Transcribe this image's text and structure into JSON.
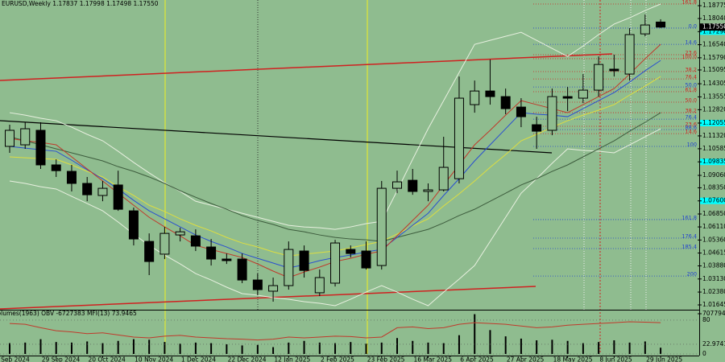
{
  "chart_data": {
    "type": "candlestick",
    "title": "EURUSD,Weekly  1.17837 1.17998 1.17498 1.17550",
    "categories": [
      "9 Sep 2024",
      null,
      null,
      "29 Sep 2024",
      null,
      null,
      "20 Oct 2024",
      null,
      null,
      "10 Nov 2024",
      null,
      null,
      "1 Dec 2024",
      null,
      null,
      "22 Dec 2024",
      null,
      null,
      "12 Jan 2025",
      null,
      null,
      "2 Feb 2025",
      null,
      null,
      "23 Feb 2025",
      null,
      null,
      "16 Mar 2025",
      null,
      null,
      "6 Apr 2025",
      null,
      null,
      "27 Apr 2025",
      null,
      null,
      "18 May 2025",
      null,
      null,
      "8 Jun 2025",
      null,
      null,
      "29 Jun 2025"
    ],
    "open": [
      1.1072,
      1.1081,
      1.1164,
      1.0966,
      1.0929,
      1.086,
      1.0791,
      1.0851,
      1.0703,
      1.0528,
      1.0455,
      1.0565,
      1.056,
      1.0496,
      1.0427,
      1.0427,
      1.0307,
      1.0243,
      1.0275,
      1.0473,
      1.0234,
      1.0289,
      1.0482,
      1.0473,
      1.039,
      1.0832,
      1.0878,
      1.0814,
      1.0823,
      1.0887,
      1.1311,
      1.1389,
      1.1357,
      1.1297,
      1.1196,
      1.1164,
      1.1357,
      1.1348,
      1.1394,
      1.1514,
      1.1486,
      1.1716,
      1.17837
    ],
    "high": [
      1.1196,
      1.121,
      1.121,
      1.0998,
      1.0966,
      1.0897,
      1.0874,
      1.0933,
      1.0722,
      1.0574,
      1.0611,
      1.0606,
      1.0597,
      1.0542,
      1.0459,
      1.0459,
      1.0344,
      1.0321,
      1.0528,
      1.0505,
      1.0367,
      1.0537,
      1.0505,
      1.0528,
      1.0874,
      1.0933,
      1.0943,
      1.086,
      1.1127,
      1.1472,
      1.1449,
      1.1569,
      1.1403,
      1.1348,
      1.1242,
      1.1403,
      1.1412,
      1.1486,
      1.1587,
      1.1597,
      1.1749,
      1.1827,
      1.17998
    ],
    "low": [
      1.1035,
      1.1058,
      1.0943,
      1.0897,
      1.0814,
      1.0758,
      1.0758,
      1.0703,
      1.0505,
      1.0335,
      1.0427,
      1.0528,
      1.0473,
      1.039,
      1.0399,
      1.0289,
      1.022,
      1.0183,
      1.0252,
      1.0321,
      1.0215,
      1.027,
      1.0436,
      1.0367,
      1.0367,
      1.0804,
      1.0795,
      1.0758,
      1.0814,
      1.086,
      1.1265,
      1.1311,
      1.1256,
      1.1182,
      1.1058,
      1.1136,
      1.1274,
      1.132,
      1.1357,
      1.1472,
      1.1449,
      1.1702,
      1.17498
    ],
    "close": [
      1.1164,
      1.1173,
      1.0966,
      1.0933,
      1.086,
      1.0795,
      1.0832,
      1.0712,
      1.0542,
      1.0413,
      1.0574,
      1.0583,
      1.0501,
      1.0427,
      1.0418,
      1.0307,
      1.0252,
      1.0275,
      1.0482,
      1.0362,
      1.0321,
      1.0519,
      1.0459,
      1.0376,
      1.0832,
      1.0869,
      1.0814,
      1.0823,
      1.0952,
      1.1348,
      1.1389,
      1.1357,
      1.1288,
      1.1242,
      1.1159,
      1.1357,
      1.1348,
      1.1394,
      1.1541,
      1.1505,
      1.1712,
      1.1767,
      1.1755
    ],
    "up_color": "#8fbc8f",
    "down_color": "#000000",
    "background": "#8fbc8f",
    "ylim": [
      1.0137,
      1.191
    ],
    "yticks": [
      1.18775,
      {
        "value": 1.1804,
        "label": "1.18040"
      },
      {
        "value": 1.1729,
        "label": "1.17290"
      },
      {
        "value": 1.1654,
        "label": "1.16540"
      },
      {
        "value": 1.1579,
        "label": "1.15790"
      },
      1.15095,
      1.14305,
      1.13555,
      {
        "value": 1.1282,
        "label": "1.12820"
      },
      1.12055,
      {
        "value": 1.1132,
        "label": "1.11320"
      },
      1.10585,
      1.09835,
      {
        "value": 1.0906,
        "label": "1.09060"
      },
      {
        "value": 1.0835,
        "label": "1.08350"
      },
      {
        "value": 1.076,
        "label": "1.07600"
      },
      {
        "value": 1.0685,
        "label": "1.06850"
      },
      {
        "value": 1.0611,
        "label": "1.06110"
      },
      {
        "value": 1.0536,
        "label": "1.05360"
      },
      1.04615,
      {
        "value": 1.0388,
        "label": "1.03880"
      },
      {
        "value": 1.0313,
        "label": "1.03130"
      },
      {
        "value": 1.0238,
        "label": "1.02380"
      },
      1.01645
    ],
    "overlays": [
      {
        "color": "#e8f0e0",
        "values": [
          1.1265,
          1.1251,
          1.1233,
          1.1219,
          1.1182,
          1.1141,
          1.1104,
          1.1044,
          1.098,
          1.092,
          1.0864,
          1.0814,
          1.0758,
          1.0735,
          1.0712,
          1.0689,
          1.0666,
          1.0643,
          1.062,
          1.0611,
          1.0606,
          1.0597,
          1.0611,
          1.063,
          1.0643,
          1.0818,
          1.0998,
          1.1173,
          1.1334,
          1.1495,
          1.1656,
          1.1679,
          1.1702,
          1.1725,
          1.1679,
          1.1633,
          1.1587,
          1.1647,
          1.1712,
          1.1772,
          1.1808,
          1.185,
          1.1887
        ]
      },
      {
        "color": "#e8f0e0",
        "values": [
          1.0874,
          1.086,
          1.0841,
          1.0828,
          1.0786,
          1.0745,
          1.0703,
          1.0639,
          1.057,
          1.0505,
          1.045,
          1.0399,
          1.0344,
          1.0307,
          1.0266,
          1.0229,
          1.022,
          1.0206,
          1.0197,
          1.0183,
          1.0174,
          1.016,
          1.0197,
          1.0238,
          1.0275,
          1.0238,
          1.0197,
          1.016,
          1.0238,
          1.0312,
          1.039,
          1.0528,
          1.0666,
          1.0804,
          1.0887,
          1.0975,
          1.1058,
          1.1049,
          1.1044,
          1.1035,
          1.1081,
          1.1127,
          1.1173
        ]
      },
      {
        "color": "#3d5c3d",
        "values": [
          1.1127,
          1.1104,
          1.1081,
          1.1058,
          1.1035,
          1.1012,
          1.0989,
          1.0956,
          1.0929,
          1.0897,
          1.086,
          1.0818,
          1.0781,
          1.0745,
          1.0712,
          1.0676,
          1.0648,
          1.0625,
          1.0597,
          1.0583,
          1.0565,
          1.0551,
          1.0542,
          1.0537,
          1.0528,
          1.0551,
          1.0574,
          1.0597,
          1.0634,
          1.0676,
          1.0712,
          1.0758,
          1.0804,
          1.0851,
          1.0887,
          1.0929,
          1.0966,
          1.1012,
          1.1058,
          1.1104,
          1.1159,
          1.121,
          1.1265
        ]
      },
      {
        "color": "#dede40",
        "values": [
          1.1012,
          1.1007,
          1.1002,
          1.0998,
          1.0966,
          1.0929,
          1.0897,
          1.0841,
          1.0791,
          1.0735,
          1.0699,
          1.0657,
          1.062,
          1.0588,
          1.0551,
          1.0519,
          1.0496,
          1.0468,
          1.0445,
          1.0455,
          1.0464,
          1.0473,
          1.0491,
          1.051,
          1.0528,
          1.057,
          1.0616,
          1.0657,
          1.0731,
          1.08,
          1.0874,
          1.0952,
          1.1025,
          1.1104,
          1.1141,
          1.1182,
          1.1219,
          1.1251,
          1.1279,
          1.1311,
          1.1366,
          1.1417,
          1.1472
        ]
      },
      {
        "color": "#2a4fd0",
        "values": [
          1.1072,
          1.1062,
          1.1053,
          1.1044,
          1.0993,
          1.0938,
          1.0887,
          1.0828,
          1.0763,
          1.0703,
          1.0657,
          1.0611,
          1.0565,
          1.0528,
          1.0496,
          1.0459,
          1.0431,
          1.0404,
          1.0376,
          1.0395,
          1.0418,
          1.0436,
          1.045,
          1.0468,
          1.0482,
          1.0551,
          1.062,
          1.0689,
          1.0791,
          1.0887,
          1.0989,
          1.1081,
          1.1173,
          1.1265,
          1.1256,
          1.1251,
          1.1242,
          1.1288,
          1.1334,
          1.138,
          1.144,
          1.1505,
          1.1564
        ]
      },
      {
        "color": "#c0392b",
        "values": [
          1.1118,
          1.1104,
          1.1095,
          1.1081,
          1.1012,
          1.0943,
          1.0874,
          1.0804,
          1.0735,
          1.0666,
          1.0611,
          1.056,
          1.0505,
          1.0482,
          1.0459,
          1.0436,
          1.0399,
          1.0358,
          1.0321,
          1.0353,
          1.0381,
          1.0413,
          1.0431,
          1.0455,
          1.0473,
          1.056,
          1.0648,
          1.0735,
          1.0851,
          1.0966,
          1.1081,
          1.1164,
          1.1251,
          1.1334,
          1.1311,
          1.1288,
          1.1265,
          1.1311,
          1.1357,
          1.1403,
          1.1486,
          1.1574,
          1.1656
        ]
      }
    ],
    "fib_levels": [
      {
        "label": "161.8",
        "value": 1.1887,
        "color": "#d02020"
      },
      {
        "label": "0.0",
        "value": 1.1749,
        "color": "#2040d0"
      },
      {
        "label": "14.6",
        "value": 1.1656,
        "color": "#2040d0"
      },
      {
        "label": "23.6",
        "value": 1.1597,
        "color": "#d02020"
      },
      {
        "label": "100.0",
        "value": 1.1574,
        "color": "#d02020"
      },
      {
        "label": "38.2",
        "value": 1.15,
        "color": "#d02020"
      },
      {
        "label": "76.4",
        "value": 1.1458,
        "color": "#d02020"
      },
      {
        "label": "50.0",
        "value": 1.1412,
        "color": "#2040d0"
      },
      {
        "label": "61.8",
        "value": 1.1385,
        "color": "#d02020"
      },
      {
        "label": "50.0",
        "value": 1.1325,
        "color": "#d02020"
      },
      {
        "label": "38.2",
        "value": 1.1265,
        "color": "#d02020"
      },
      {
        "label": "76.4",
        "value": 1.1228,
        "color": "#2040d0"
      },
      {
        "label": "23.6",
        "value": 1.1187,
        "color": "#d02020"
      },
      {
        "label": "88.6",
        "value": 1.1168,
        "color": "#2040d0"
      },
      {
        "label": "14.6",
        "value": 1.1145,
        "color": "#d02020"
      },
      {
        "label": "100",
        "value": 1.1072,
        "color": "#2040d0"
      },
      {
        "label": "161.8",
        "value": 1.0653,
        "color": "#2040d0"
      },
      {
        "label": "176.4",
        "value": 1.0547,
        "color": "#2040d0"
      },
      {
        "label": "185.4",
        "value": 1.0487,
        "color": "#2040d0"
      },
      {
        "label": "200",
        "value": 1.033,
        "color": "#2040d0"
      }
    ],
    "highlight_levels": [
      1.1729,
      1.12055,
      1.09835,
      1.076
    ],
    "highlight_color": "#00ffff",
    "last_price": {
      "value": 1.1755,
      "label": "1.17550"
    },
    "indicator": {
      "title": "Volumes(1963)  OBV -6727383  MFI(13) 73.9465",
      "volumes": [
        190000,
        200000,
        260000,
        210000,
        200000,
        220000,
        190000,
        230000,
        260000,
        250000,
        210000,
        180000,
        200000,
        190000,
        170000,
        150000,
        160000,
        120000,
        200000,
        230000,
        200000,
        190000,
        210000,
        180000,
        200000,
        280000,
        230000,
        200000,
        190000,
        330000,
        700000,
        420000,
        310000,
        270000,
        240000,
        250000,
        230000,
        190000,
        210000,
        240000,
        200000,
        220000,
        110000
      ],
      "volume_color": "#000000",
      "ylim": [
        0,
        744600
      ],
      "yticks": [
        707794
      ],
      "mfi": {
        "color": "#c0392b",
        "values": [
          72,
          70,
          62,
          55,
          52,
          48,
          50,
          45,
          40,
          38,
          42,
          44,
          40,
          38,
          36,
          35,
          33,
          35,
          40,
          38,
          40,
          42,
          41,
          38,
          40,
          62,
          64,
          60,
          62,
          70,
          74,
          72,
          70,
          66,
          62,
          64,
          68,
          70,
          72,
          74,
          76,
          75,
          73.9465
        ]
      },
      "y2lim": [
        0,
        100
      ],
      "y2ticks": [
        80,
        22.9741,
        0
      ]
    }
  }
}
